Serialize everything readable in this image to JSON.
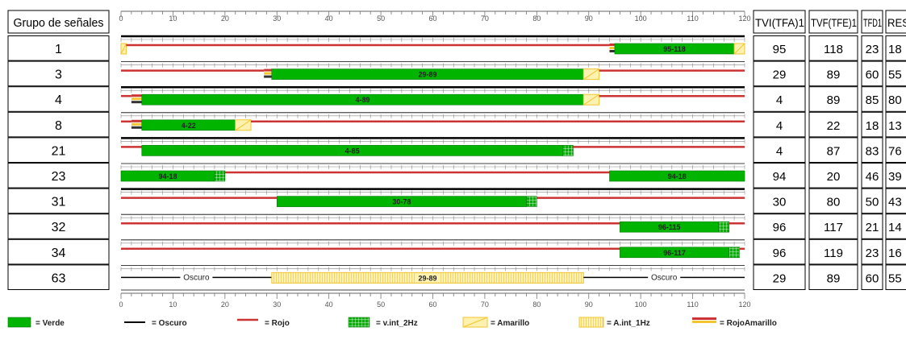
{
  "header": {
    "group_col": "Grupo de señales",
    "right_cols": [
      "TVI(TFA)1",
      "TVF(TFE)1",
      "TFD1",
      "RES"
    ]
  },
  "colors": {
    "verde": "#00b400",
    "rojo": "#cc3333",
    "amarillo": "#f2c531",
    "amarillo_fill": "#fff1b0",
    "oscuro": "#000000"
  },
  "chart_data": {
    "type": "timeline",
    "x_range": [
      0,
      120
    ],
    "x_ticks": [
      "0",
      "10",
      "20",
      "30",
      "40",
      "50",
      "60",
      "70",
      "80",
      "90",
      "100",
      "110",
      "120"
    ],
    "rows": [
      {
        "group": "1",
        "tvi": "95",
        "tvf": "118",
        "tfd": "23",
        "res": "18",
        "heavy_top": true,
        "segments": [
          {
            "type": "amarillo",
            "start": 0,
            "end": 1
          },
          {
            "type": "rojo",
            "start": 1,
            "end": 94
          },
          {
            "type": "rojoamarillo",
            "start": 94,
            "end": 95
          },
          {
            "type": "verde",
            "start": 95,
            "end": 118,
            "label": "95-118"
          },
          {
            "type": "amarillo",
            "start": 118,
            "end": 120
          }
        ]
      },
      {
        "group": "3",
        "tvi": "29",
        "tvf": "89",
        "tfd": "60",
        "res": "55",
        "heavy_top": false,
        "segments": [
          {
            "type": "rojo",
            "start": 0,
            "end": 27.5
          },
          {
            "type": "rojoamarillo",
            "start": 27.5,
            "end": 29
          },
          {
            "type": "verde",
            "start": 29,
            "end": 89,
            "label": "29-89"
          },
          {
            "type": "amarillo",
            "start": 89,
            "end": 92
          },
          {
            "type": "rojo",
            "start": 92,
            "end": 120
          }
        ]
      },
      {
        "group": "4",
        "tvi": "4",
        "tvf": "89",
        "tfd": "85",
        "res": "80",
        "heavy_top": true,
        "segments": [
          {
            "type": "rojo",
            "start": 0,
            "end": 2
          },
          {
            "type": "rojoamarillo",
            "start": 2,
            "end": 4
          },
          {
            "type": "verde",
            "start": 4,
            "end": 89,
            "label": "4-89"
          },
          {
            "type": "amarillo",
            "start": 89,
            "end": 92
          },
          {
            "type": "rojo",
            "start": 92,
            "end": 120
          }
        ]
      },
      {
        "group": "8",
        "tvi": "4",
        "tvf": "22",
        "tfd": "18",
        "res": "13",
        "heavy_top": false,
        "segments": [
          {
            "type": "rojo",
            "start": 0,
            "end": 2
          },
          {
            "type": "rojoamarillo",
            "start": 2,
            "end": 4
          },
          {
            "type": "verde",
            "start": 4,
            "end": 22,
            "label": "4-22"
          },
          {
            "type": "amarillo",
            "start": 22,
            "end": 25
          },
          {
            "type": "rojo",
            "start": 25,
            "end": 120
          }
        ]
      },
      {
        "group": "21",
        "tvi": "4",
        "tvf": "87",
        "tfd": "83",
        "res": "76",
        "heavy_top": true,
        "segments": [
          {
            "type": "rojo",
            "start": 0,
            "end": 4
          },
          {
            "type": "verde",
            "start": 4,
            "end": 85,
            "label": "4-85"
          },
          {
            "type": "verde_int",
            "start": 85,
            "end": 87
          },
          {
            "type": "rojo",
            "start": 87,
            "end": 120
          }
        ]
      },
      {
        "group": "23",
        "tvi": "94",
        "tvf": "20",
        "tfd": "46",
        "res": "39",
        "heavy_top": false,
        "segments": [
          {
            "type": "verde",
            "start": 0,
            "end": 18,
            "label": "94-18"
          },
          {
            "type": "verde_int",
            "start": 18,
            "end": 20
          },
          {
            "type": "rojo",
            "start": 20,
            "end": 94
          },
          {
            "type": "verde",
            "start": 94,
            "end": 120,
            "label": "94-18"
          }
        ]
      },
      {
        "group": "31",
        "tvi": "30",
        "tvf": "80",
        "tfd": "50",
        "res": "43",
        "heavy_top": true,
        "segments": [
          {
            "type": "rojo",
            "start": 0,
            "end": 30
          },
          {
            "type": "verde",
            "start": 30,
            "end": 78,
            "label": "30-78"
          },
          {
            "type": "verde_int",
            "start": 78,
            "end": 80
          },
          {
            "type": "rojo",
            "start": 80,
            "end": 120
          }
        ]
      },
      {
        "group": "32",
        "tvi": "96",
        "tvf": "117",
        "tfd": "21",
        "res": "14",
        "heavy_top": false,
        "segments": [
          {
            "type": "rojo",
            "start": 0,
            "end": 96
          },
          {
            "type": "verde",
            "start": 96,
            "end": 115,
            "label": "96-115"
          },
          {
            "type": "verde_int",
            "start": 115,
            "end": 117
          },
          {
            "type": "rojo",
            "start": 117,
            "end": 120
          }
        ]
      },
      {
        "group": "34",
        "tvi": "96",
        "tvf": "119",
        "tfd": "23",
        "res": "16",
        "heavy_top": false,
        "segments": [
          {
            "type": "rojo",
            "start": 0,
            "end": 96
          },
          {
            "type": "verde",
            "start": 96,
            "end": 117,
            "label": "96-117"
          },
          {
            "type": "verde_int",
            "start": 117,
            "end": 119
          },
          {
            "type": "rojo",
            "start": 119,
            "end": 120
          }
        ]
      },
      {
        "group": "63",
        "tvi": "29",
        "tvf": "89",
        "tfd": "60",
        "res": "55",
        "heavy_top": false,
        "segments": [
          {
            "type": "oscuro",
            "start": 0,
            "end": 29,
            "label": "Oscuro"
          },
          {
            "type": "amarillo_int",
            "start": 29,
            "end": 89,
            "label": "29-89"
          },
          {
            "type": "oscuro",
            "start": 89,
            "end": 120,
            "label": "Oscuro"
          }
        ]
      }
    ]
  },
  "legend": [
    {
      "type": "verde",
      "label": "= Verde"
    },
    {
      "type": "oscuro",
      "label": "= Oscuro"
    },
    {
      "type": "rojo",
      "label": "= Rojo"
    },
    {
      "type": "verde_int",
      "label": "= v.int_2Hz"
    },
    {
      "type": "amarillo",
      "label": "= Amarillo"
    },
    {
      "type": "amarillo_int",
      "label": "= A.int_1Hz"
    },
    {
      "type": "rojoamarillo",
      "label": "= RojoAmarillo"
    }
  ]
}
